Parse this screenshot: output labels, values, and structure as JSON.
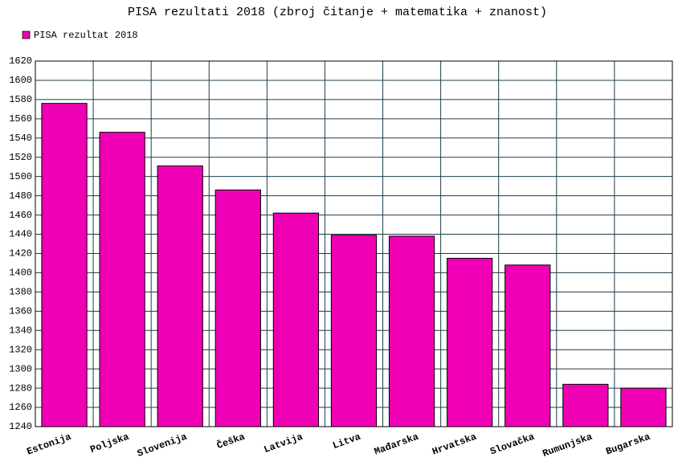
{
  "chart_data": {
    "type": "bar",
    "title": "PISA rezultati 2018 (zbroj čitanje + matematika + znanost)",
    "categories": [
      "Estonija",
      "Poljska",
      "Slovenija",
      "Češka",
      "Latvija",
      "Litva",
      "Mađarska",
      "Hrvatska",
      "Slovačka",
      "Rumunjska",
      "Bugarska"
    ],
    "series": [
      {
        "name": "PISA rezultat 2018",
        "color": "#f000b4",
        "values": [
          1576,
          1546,
          1511,
          1486,
          1462,
          1439,
          1438,
          1415,
          1408,
          1284,
          1280
        ]
      }
    ],
    "ylim": [
      1240,
      1620
    ],
    "yticks": [
      1240,
      1260,
      1280,
      1300,
      1320,
      1340,
      1360,
      1380,
      1400,
      1420,
      1440,
      1460,
      1480,
      1500,
      1520,
      1540,
      1560,
      1580,
      1600,
      1620
    ],
    "grid": true
  }
}
